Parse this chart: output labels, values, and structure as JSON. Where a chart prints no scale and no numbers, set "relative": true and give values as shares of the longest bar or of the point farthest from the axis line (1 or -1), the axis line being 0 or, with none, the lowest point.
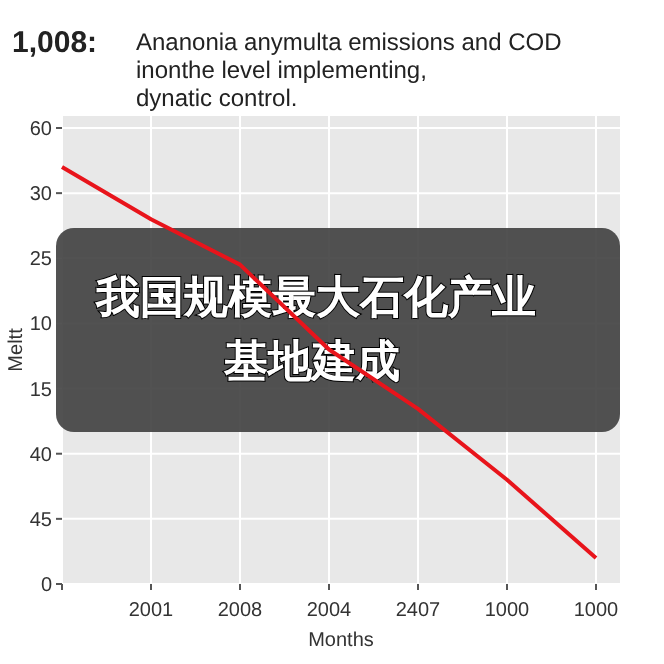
{
  "chart_data": {
    "type": "line",
    "title": "1,008:",
    "subtitle": "Ananonia anymulta emissions and COD\ninonthe level implementing,\ndynatic control.",
    "xlabel": "Months",
    "ylabel": "Meltt",
    "categories": [
      null,
      "2001",
      "2008",
      "2004",
      "2407",
      "1000",
      "1000"
    ],
    "y_categories": [
      "60",
      "30",
      "25",
      "10",
      "15",
      "40",
      "45",
      "0"
    ],
    "relative": true,
    "series": [
      {
        "color": "#e8141b",
        "values": [
          1,
          0.875,
          0.766,
          0.5625,
          0.42,
          0.25,
          0.0625
        ]
      }
    ],
    "grid": true,
    "marker": "none",
    "line_style": "solid",
    "annotations": [
      "我国规模最大石化产业基地建成"
    ]
  }
}
